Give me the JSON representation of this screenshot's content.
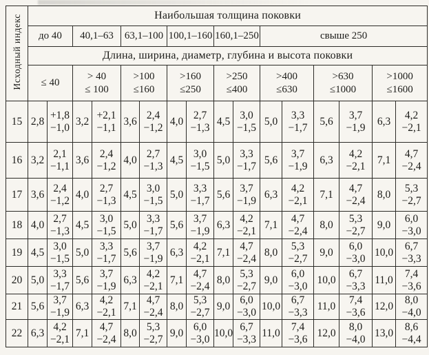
{
  "page": {
    "background": "#f6f4ef",
    "line_color": "#2b2a26"
  },
  "table": {
    "corner_label": "Исходный индекс",
    "header_thickness": "Наибольшая толщина поковки",
    "header_dimensions": "Длина, ширина, диаметр, глубина и высота поковки",
    "thickness_cols": [
      {
        "label": "до 40",
        "span": 1
      },
      {
        "label": "40,1–63",
        "span": 1
      },
      {
        "label": "63,1–100",
        "span": 1
      },
      {
        "label": "100,1–160",
        "span": 1
      },
      {
        "label": "160,1–250",
        "span": 1
      },
      {
        "label": "свыше 250",
        "span": 3
      }
    ],
    "dim_cols": [
      {
        "line1": "≤ 40",
        "line2": ""
      },
      {
        "line1": "> 40",
        "line2": "≤ 100"
      },
      {
        "line1": ">100",
        "line2": "≤160"
      },
      {
        "line1": ">160",
        "line2": "≤250"
      },
      {
        "line1": ">250",
        "line2": "≤400"
      },
      {
        "line1": ">400",
        "line2": "≤630"
      },
      {
        "line1": ">630",
        "line2": "≤1000"
      },
      {
        "line1": ">1000",
        "line2": "≤1600"
      }
    ],
    "rows": [
      {
        "index": "15",
        "cells": [
          [
            "2,8",
            "+1,8",
            "−1,0"
          ],
          [
            "3,2",
            "+2,1",
            "−1,1"
          ],
          [
            "3,6",
            "2,4",
            "−1,2"
          ],
          [
            "4,0",
            "2,7",
            "−1,3"
          ],
          [
            "4,5",
            "3,0",
            "−1,5"
          ],
          [
            "5,0",
            "3,3",
            "−1,7"
          ],
          [
            "5,6",
            "3,7",
            "−1,9"
          ],
          [
            "6,3",
            "4,2",
            "−2,1"
          ]
        ]
      },
      {
        "index": "16",
        "cells": [
          [
            "3,2",
            "2,1",
            "−1,1"
          ],
          [
            "3,6",
            "2,4",
            "−1,2"
          ],
          [
            "4,0",
            "2,7",
            "−1,3"
          ],
          [
            "4,5",
            "3,0",
            "−1,5"
          ],
          [
            "5,0",
            "3,3",
            "−1,7"
          ],
          [
            "5,6",
            "3,7",
            "−1,9"
          ],
          [
            "6,3",
            "4,2",
            "−2,1"
          ],
          [
            "7,1",
            "4,7",
            "−2,4"
          ]
        ]
      },
      {
        "index": "17",
        "cells": [
          [
            "3,6",
            "2,4",
            "−1,2"
          ],
          [
            "4,0",
            "2,7",
            "−1,3"
          ],
          [
            "4,5",
            "3,0",
            "−1,5"
          ],
          [
            "5,0",
            "3,3",
            "−1,7"
          ],
          [
            "5,6",
            "3,7",
            "−1,9"
          ],
          [
            "6,3",
            "4,2",
            "−2,1"
          ],
          [
            "7,1",
            "4,7",
            "−2,4"
          ],
          [
            "8,0",
            "5,3",
            "−2,7"
          ]
        ]
      },
      {
        "index": "18",
        "cells": [
          [
            "4,0",
            "2,7",
            "−1,3"
          ],
          [
            "4,5",
            "3,0",
            "−1,5"
          ],
          [
            "5,0",
            "3,3",
            "−1,7"
          ],
          [
            "5,6",
            "3,7",
            "−1,9"
          ],
          [
            "6,3",
            "4,2",
            "−2,1"
          ],
          [
            "7,1",
            "4,7",
            "−2,4"
          ],
          [
            "8,0",
            "5,3",
            "−2,7"
          ],
          [
            "9,0",
            "6,0",
            "−3,0"
          ]
        ]
      },
      {
        "index": "19",
        "cells": [
          [
            "4,5",
            "3,0",
            "−1,5"
          ],
          [
            "5,0",
            "3,3",
            "−1,7"
          ],
          [
            "5,6",
            "3,7",
            "−1,9"
          ],
          [
            "6,3",
            "4,2",
            "−2,1"
          ],
          [
            "7,1",
            "4,7",
            "−2,4"
          ],
          [
            "8,0",
            "5,3",
            "−2,7"
          ],
          [
            "9,0",
            "6,0",
            "−3,0"
          ],
          [
            "10,0",
            "6,7",
            "−3,3"
          ]
        ]
      },
      {
        "index": "20",
        "cells": [
          [
            "5,0",
            "3,3",
            "−1,7"
          ],
          [
            "5,6",
            "3,7",
            "−1,9"
          ],
          [
            "6,3",
            "4,2",
            "−2,1"
          ],
          [
            "7,1",
            "4,7",
            "−2,4"
          ],
          [
            "8,0",
            "5,3",
            "−2,7"
          ],
          [
            "9,0",
            "6,0",
            "−3,0"
          ],
          [
            "10,0",
            "6,7",
            "−3,3"
          ],
          [
            "11,0",
            "7,4",
            "−3,6"
          ]
        ]
      },
      {
        "index": "21",
        "cells": [
          [
            "5,6",
            "3,7",
            "−1,9"
          ],
          [
            "6,3",
            "4,2",
            "−2,1"
          ],
          [
            "7,1",
            "4,7",
            "−2,4"
          ],
          [
            "8,0",
            "5,3",
            "−2,7"
          ],
          [
            "9,0",
            "6,0",
            "−3,0"
          ],
          [
            "10,0",
            "6,7",
            "−3,3"
          ],
          [
            "11,0",
            "7,4",
            "−3,6"
          ],
          [
            "12,0",
            "8,0",
            "−4,0"
          ]
        ]
      },
      {
        "index": "22",
        "cells": [
          [
            "6,3",
            "4,2",
            "−2,1"
          ],
          [
            "7,1",
            "4,7",
            "−2,4"
          ],
          [
            "8,0",
            "5,3",
            "−2,7"
          ],
          [
            "9,0",
            "6,0",
            "−3,0"
          ],
          [
            "10,0",
            "6,7",
            "−3,3"
          ],
          [
            "11,0",
            "7,4",
            "−3,6"
          ],
          [
            "12,0",
            "8,0",
            "−4,0"
          ],
          [
            "13,0",
            "8,6",
            "−4,4"
          ]
        ]
      }
    ]
  }
}
